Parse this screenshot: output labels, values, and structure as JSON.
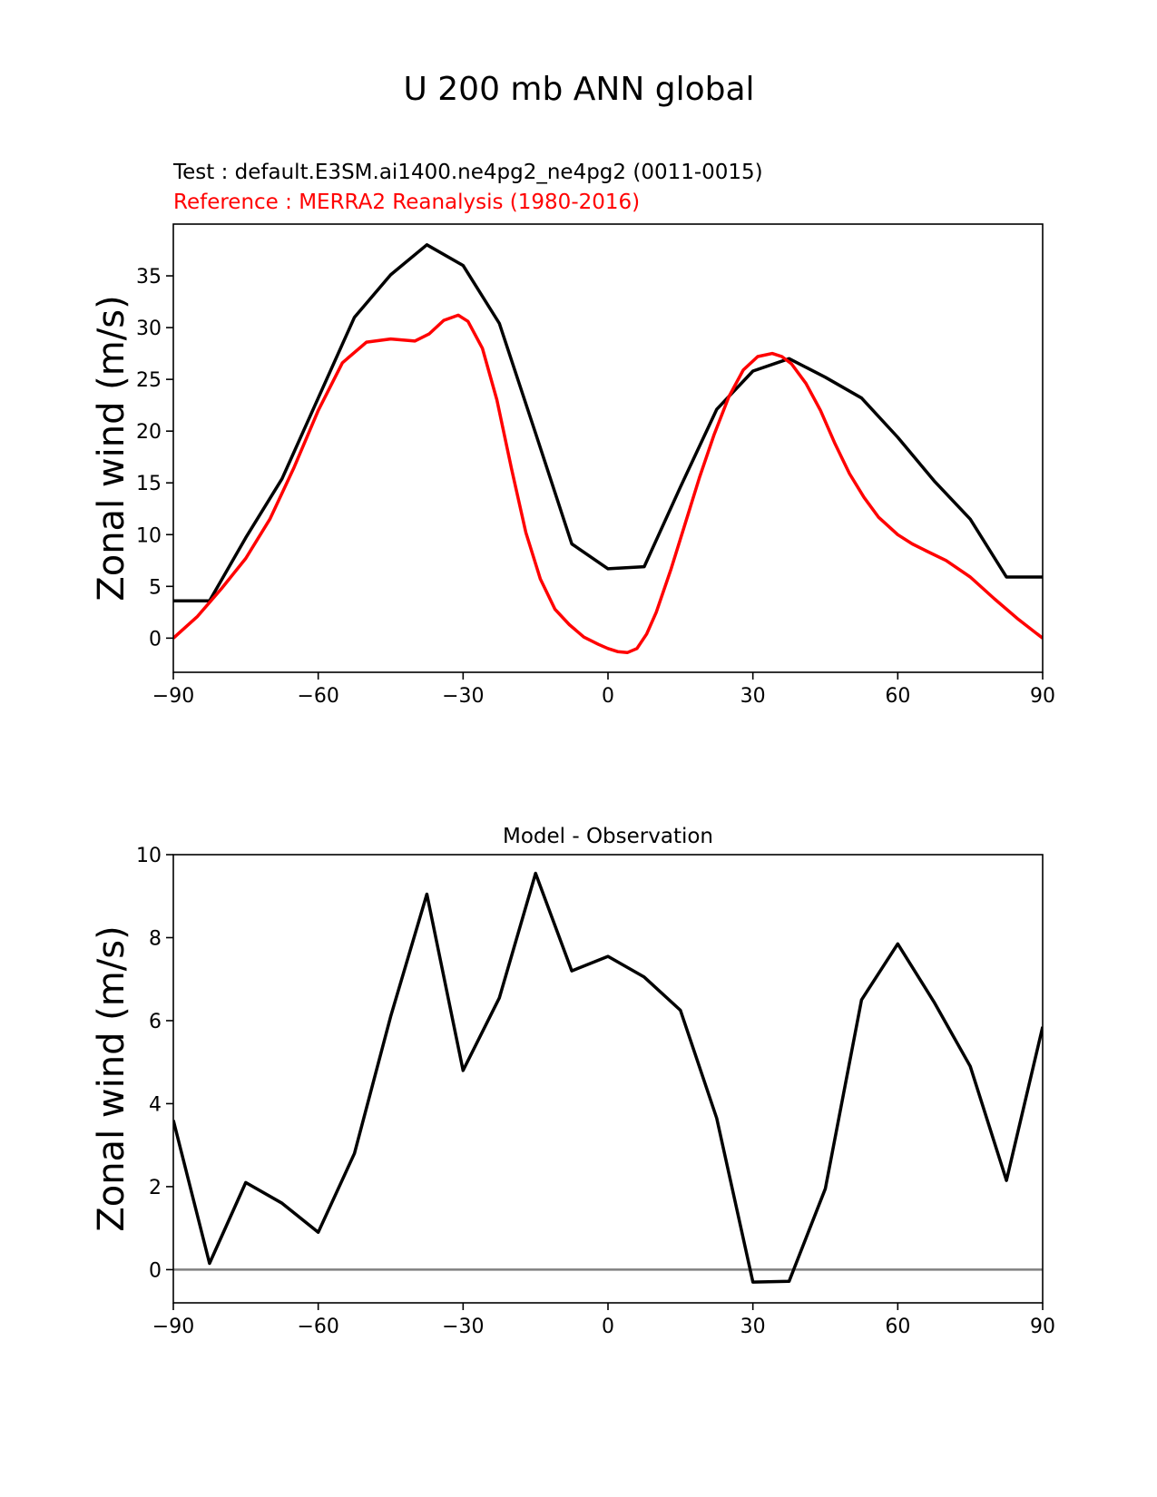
{
  "figure": {
    "title": "U 200 mb ANN global"
  },
  "chart_data": [
    {
      "type": "line",
      "title_lines": [
        {
          "text": "Test : default.E3SM.ai1400.ne4pg2_ne4pg2 (0011-0015)",
          "color": "#000000"
        },
        {
          "text": "Reference : MERRA2 Reanalysis (1980-2016)",
          "color": "#ff0000"
        }
      ],
      "xlabel": "",
      "ylabel": "Zonal wind (m/s)",
      "xlim": [
        -90,
        90
      ],
      "ylim": [
        -3.3,
        40
      ],
      "xticks": [
        -90,
        -60,
        -30,
        0,
        30,
        60,
        90
      ],
      "yticks": [
        0,
        5,
        10,
        15,
        20,
        25,
        30,
        35
      ],
      "series": [
        {
          "name": "Test",
          "color": "#000000",
          "x": [
            -90,
            -82.5,
            -75,
            -67.5,
            -60,
            -52.5,
            -45,
            -37.5,
            -30,
            -22.5,
            -15,
            -7.5,
            0,
            7.5,
            15,
            22.5,
            30,
            37.5,
            45,
            52.5,
            60,
            67.5,
            75,
            82.5,
            90
          ],
          "y": [
            3.6,
            3.6,
            9.7,
            15.4,
            23.2,
            31.0,
            35.1,
            38.0,
            36.0,
            30.4,
            19.8,
            9.1,
            6.7,
            6.9,
            14.6,
            22.1,
            25.8,
            27.0,
            25.2,
            23.2,
            19.4,
            15.2,
            11.5,
            5.9,
            5.9
          ]
        },
        {
          "name": "Reference",
          "color": "#ff0000",
          "x": [
            -90,
            -85,
            -80,
            -75,
            -70,
            -65,
            -60,
            -55,
            -50,
            -45,
            -40,
            -37,
            -34,
            -31,
            -29,
            -26,
            -23,
            -20,
            -17,
            -14,
            -11,
            -8,
            -5,
            -2,
            0,
            2,
            4,
            6,
            8,
            10,
            13,
            16,
            19,
            22,
            25,
            28,
            31,
            34,
            36,
            38,
            41,
            44,
            47,
            50,
            53,
            56,
            60,
            63,
            66,
            70,
            75,
            80,
            85,
            90
          ],
          "y": [
            0.0,
            2.1,
            4.8,
            7.7,
            11.5,
            16.5,
            22.0,
            26.6,
            28.6,
            28.9,
            28.7,
            29.4,
            30.7,
            31.2,
            30.6,
            28.0,
            23.0,
            16.4,
            10.2,
            5.7,
            2.8,
            1.3,
            0.1,
            -0.6,
            -1.0,
            -1.3,
            -1.4,
            -1.0,
            0.4,
            2.5,
            6.6,
            11.1,
            15.6,
            19.7,
            23.3,
            25.9,
            27.2,
            27.5,
            27.2,
            26.5,
            24.6,
            22.0,
            18.8,
            15.9,
            13.6,
            11.7,
            10.0,
            9.1,
            8.4,
            7.5,
            5.9,
            3.8,
            1.8,
            0.0
          ]
        }
      ]
    },
    {
      "type": "line",
      "title": "Model - Observation",
      "xlabel": "",
      "ylabel": "Zonal wind (m/s)",
      "xlim": [
        -90,
        90
      ],
      "ylim": [
        -0.8,
        10
      ],
      "xticks": [
        -90,
        -60,
        -30,
        0,
        30,
        60,
        90
      ],
      "yticks": [
        0,
        2,
        4,
        6,
        8,
        10
      ],
      "zero_line_color": "#808080",
      "series": [
        {
          "name": "Model - Observation",
          "color": "#000000",
          "x": [
            -90,
            -82.5,
            -75,
            -67.5,
            -60,
            -52.5,
            -45,
            -37.5,
            -30,
            -22.5,
            -15,
            -7.5,
            0,
            7.5,
            15,
            22.5,
            30,
            37.5,
            45,
            52.5,
            60,
            67.5,
            75,
            82.5,
            90
          ],
          "y": [
            3.6,
            0.15,
            2.1,
            1.6,
            0.9,
            2.8,
            6.1,
            9.05,
            4.8,
            6.55,
            9.55,
            7.2,
            7.55,
            7.05,
            6.25,
            3.65,
            -0.3,
            -0.28,
            1.95,
            6.5,
            7.85,
            6.45,
            4.9,
            2.15,
            5.85
          ]
        }
      ]
    }
  ]
}
